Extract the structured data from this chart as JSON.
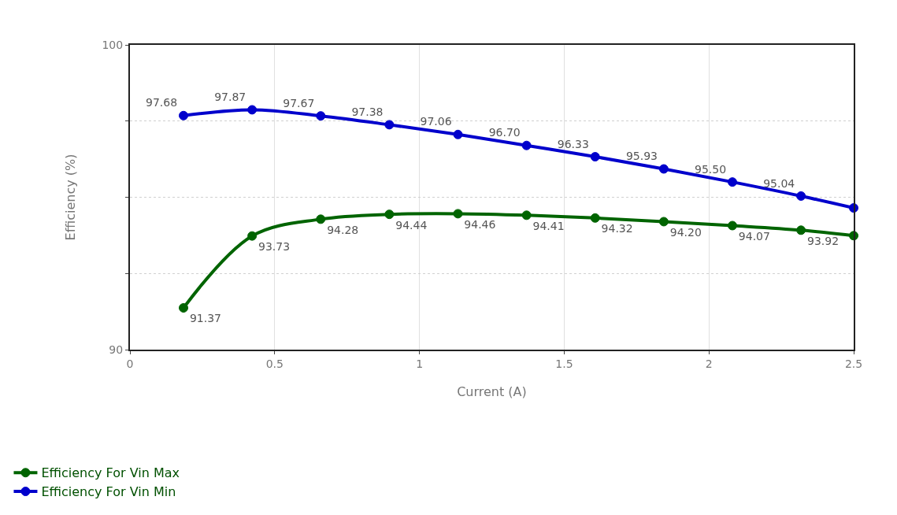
{
  "chart_data": {
    "type": "line",
    "xlabel": "Current (A)",
    "ylabel": "Efficiency (%)",
    "x": [
      0.185,
      0.422,
      0.659,
      0.896,
      1.133,
      1.37,
      1.607,
      1.844,
      2.081,
      2.318,
      2.5
    ],
    "series": [
      {
        "name": "Efficiency For Vin Max",
        "color": "#006400",
        "values": [
          91.37,
          93.73,
          94.28,
          94.44,
          94.46,
          94.41,
          94.32,
          94.2,
          94.07,
          93.92,
          93.74
        ],
        "value_labels": [
          "91.37",
          "93.73",
          "94.28",
          "94.44",
          "94.46",
          "94.41",
          "94.32",
          "94.20",
          "94.07",
          "93.92",
          null
        ]
      },
      {
        "name": "Efficiency For Vin Min",
        "color": "#0000cc",
        "values": [
          97.68,
          97.87,
          97.67,
          97.38,
          97.06,
          96.7,
          96.33,
          95.93,
          95.5,
          95.04,
          94.65
        ],
        "value_labels": [
          "97.68",
          "97.87",
          "97.67",
          "97.38",
          "97.06",
          "96.70",
          "96.33",
          "95.93",
          "95.50",
          "95.04",
          null
        ]
      }
    ],
    "xlim": [
      0,
      2.5
    ],
    "xticks": [
      0,
      0.5,
      1,
      1.5,
      2,
      2.5
    ],
    "ylim": [
      90,
      100
    ],
    "yticks": [
      90,
      {
        "value": 92.5,
        "label": null
      },
      {
        "value": 95,
        "label": null
      },
      {
        "value": 97.5,
        "label": null
      },
      100
    ],
    "grid": true,
    "legend": "bottom left",
    "marker": "circle",
    "line_style": "solid"
  }
}
